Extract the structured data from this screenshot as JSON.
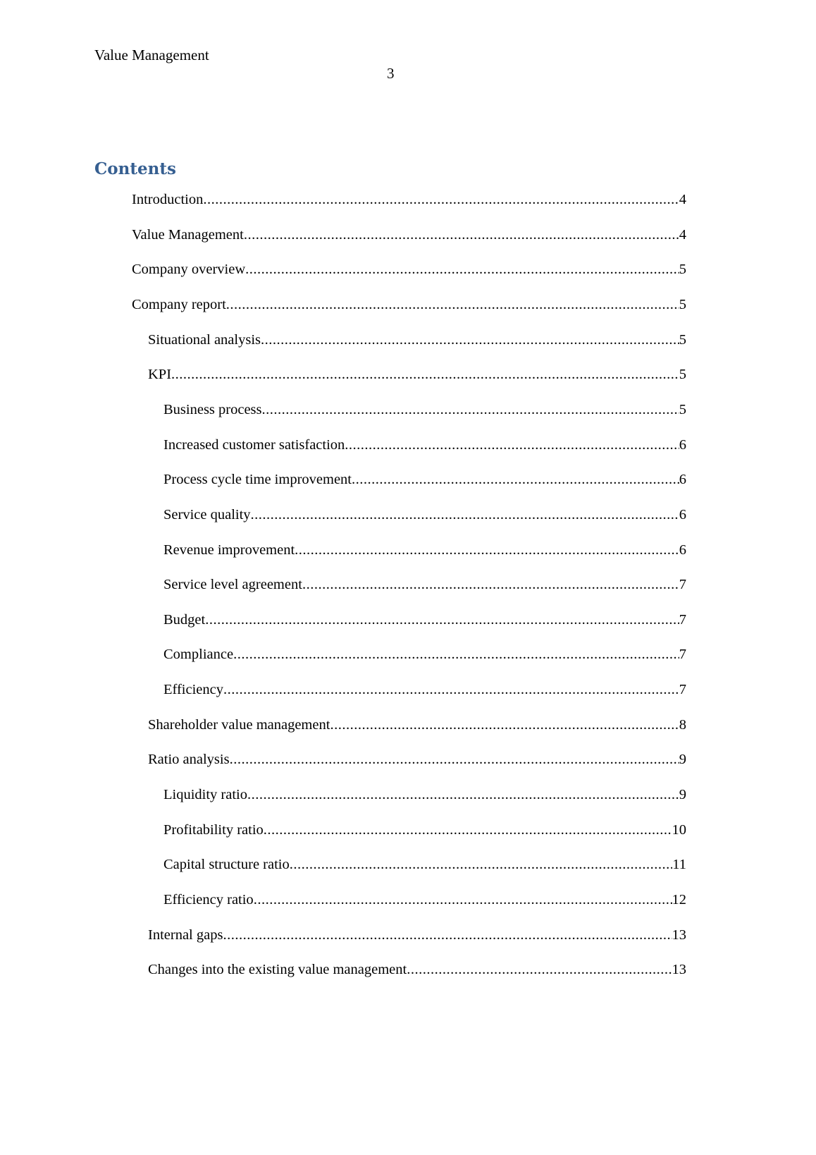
{
  "header": {
    "running_title": "Value Management",
    "page_number": "3"
  },
  "toc": {
    "title": "Contents",
    "entries": [
      {
        "label": "Introduction",
        "page": "4",
        "level": 1
      },
      {
        "label": "Value Management",
        "page": "4",
        "level": 1
      },
      {
        "label": "Company overview",
        "page": "5",
        "level": 1
      },
      {
        "label": "Company report",
        "page": "5",
        "level": 1
      },
      {
        "label": "Situational analysis",
        "page": "5",
        "level": 2
      },
      {
        "label": "KPI",
        "page": "5",
        "level": 2
      },
      {
        "label": "Business process",
        "page": "5",
        "level": 3
      },
      {
        "label": "Increased customer satisfaction",
        "page": "6",
        "level": 3
      },
      {
        "label": "Process cycle time improvement",
        "page": "6",
        "level": 3
      },
      {
        "label": "Service quality",
        "page": "6",
        "level": 3
      },
      {
        "label": "Revenue improvement",
        "page": "6",
        "level": 3
      },
      {
        "label": "Service level agreement",
        "page": "7",
        "level": 3
      },
      {
        "label": "Budget",
        "page": "7",
        "level": 3
      },
      {
        "label": "Compliance",
        "page": "7",
        "level": 3
      },
      {
        "label": "Efficiency",
        "page": "7",
        "level": 3
      },
      {
        "label": "Shareholder value management",
        "page": "8",
        "level": 2
      },
      {
        "label": "Ratio analysis",
        "page": "9",
        "level": 2
      },
      {
        "label": "Liquidity ratio",
        "page": "9",
        "level": 3
      },
      {
        "label": "Profitability ratio",
        "page": "10",
        "level": 3
      },
      {
        "label": "Capital structure ratio",
        "page": "11",
        "level": 3
      },
      {
        "label": "Efficiency ratio",
        "page": "12",
        "level": 3
      },
      {
        "label": "Internal gaps",
        "page": "13",
        "level": 2
      },
      {
        "label": "Changes into the existing value management",
        "page": "13",
        "level": 2
      }
    ]
  },
  "colors": {
    "heading": "#365f91",
    "text": "#000000"
  }
}
